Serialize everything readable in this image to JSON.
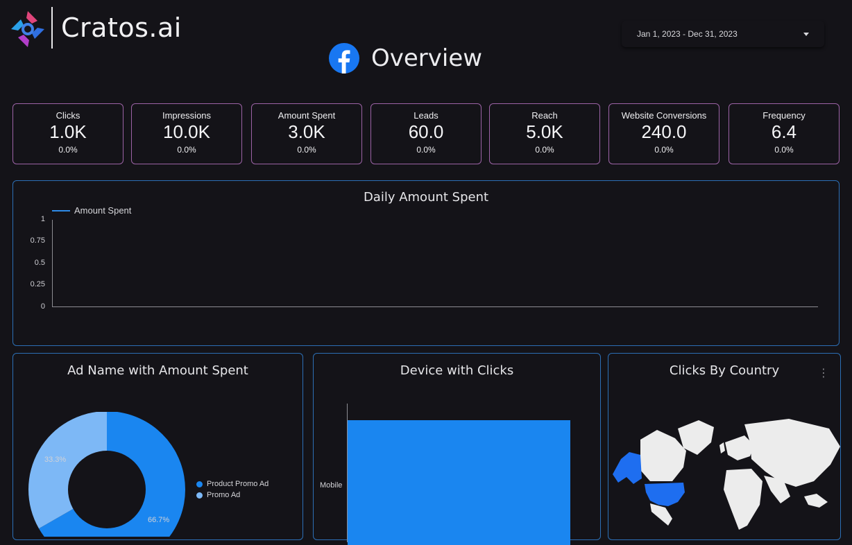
{
  "brand": {
    "name": "Cratos.ai",
    "logo_icon": "cratos-logo-icon"
  },
  "date_range": {
    "value": "Jan 1, 2023 - Dec 31, 2023",
    "icon": "chevron-down-icon"
  },
  "header": {
    "title": "Overview",
    "icon": "facebook-icon",
    "icon_color": "#1877f2"
  },
  "kpis": [
    {
      "label": "Clicks",
      "value": "1.0K",
      "delta": "0.0%"
    },
    {
      "label": "Impressions",
      "value": "10.0K",
      "delta": "0.0%"
    },
    {
      "label": "Amount Spent",
      "value": "3.0K",
      "delta": "0.0%"
    },
    {
      "label": "Leads",
      "value": "60.0",
      "delta": "0.0%"
    },
    {
      "label": "Reach",
      "value": "5.0K",
      "delta": "0.0%"
    },
    {
      "label": "Website Conversions",
      "value": "240.0",
      "delta": "0.0%"
    },
    {
      "label": "Frequency",
      "value": "6.4",
      "delta": "0.0%"
    }
  ],
  "colors": {
    "kpi_border": "#9c63a6",
    "panel_border": "#2c6fb6",
    "series_primary": "#1a86f0",
    "series_secondary": "#7db8f6",
    "background": "#141318"
  },
  "daily_chart": {
    "title": "Daily Amount Spent",
    "chart_data": {
      "type": "line",
      "series": [
        {
          "name": "Amount Spent",
          "values": []
        }
      ],
      "x": [],
      "ylim": [
        0,
        1
      ],
      "yticks": [
        "1",
        "0.75",
        "0.5",
        "0.25",
        "0"
      ],
      "legend_position": "top-left",
      "grid": false
    }
  },
  "ad_chart": {
    "title": "Ad Name with Amount Spent",
    "chart_data": {
      "type": "pie",
      "categories": [
        "Product Promo Ad",
        "Promo Ad"
      ],
      "values": [
        66.7,
        33.3
      ],
      "labels": [
        "66.7%",
        "33.3%"
      ],
      "legend_position": "right"
    }
  },
  "device_chart": {
    "title": "Device with Clicks",
    "chart_data": {
      "type": "bar",
      "orientation": "horizontal",
      "categories": [
        "Mobile"
      ],
      "values": [
        1000
      ],
      "xlim": [
        0,
        1000
      ]
    }
  },
  "country_chart": {
    "title": "Clicks By Country",
    "menu_icon": "more-vertical-icon",
    "highlighted_country": "United States"
  }
}
